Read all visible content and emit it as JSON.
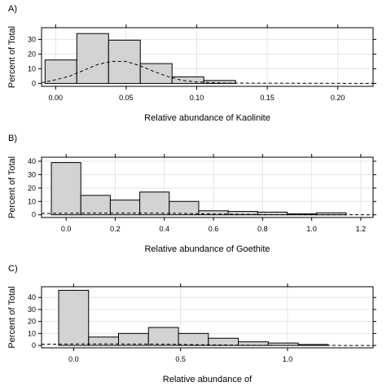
{
  "chart_data": [
    {
      "type": "bar",
      "panel": "A)",
      "xlabel": "Relative abundance of Kaolinite",
      "ylabel": "Percent of Total",
      "xlim": [
        -0.01,
        0.225
      ],
      "ylim": [
        -2,
        38
      ],
      "x_ticks": [
        0.0,
        0.05,
        0.1,
        0.15,
        0.2
      ],
      "x_tick_labels": [
        "0.00",
        "0.05",
        "0.10",
        "0.15",
        "0.20"
      ],
      "y_ticks": [
        0,
        10,
        20,
        30
      ],
      "y_tick_labels": [
        "0",
        "10",
        "20",
        "30"
      ],
      "bins": [
        {
          "x0": -0.0075,
          "x1": 0.015,
          "value": 16
        },
        {
          "x0": 0.015,
          "x1": 0.0375,
          "value": 34
        },
        {
          "x0": 0.0375,
          "x1": 0.06,
          "value": 29.5
        },
        {
          "x0": 0.06,
          "x1": 0.0825,
          "value": 13.5
        },
        {
          "x0": 0.0825,
          "x1": 0.105,
          "value": 4.5
        },
        {
          "x0": 0.105,
          "x1": 0.1275,
          "value": 2
        }
      ],
      "density_points": [
        [
          -0.01,
          0.5
        ],
        [
          0.0,
          2.5
        ],
        [
          0.01,
          5
        ],
        [
          0.02,
          9
        ],
        [
          0.03,
          13
        ],
        [
          0.04,
          15
        ],
        [
          0.05,
          15
        ],
        [
          0.06,
          12
        ],
        [
          0.07,
          8
        ],
        [
          0.08,
          4.5
        ],
        [
          0.09,
          2
        ],
        [
          0.1,
          1
        ],
        [
          0.12,
          0.2
        ],
        [
          0.225,
          0
        ]
      ],
      "grid": true
    },
    {
      "type": "bar",
      "panel": "B)",
      "xlabel": "Relative abundance of Goethite",
      "ylabel": "Percent of Total",
      "xlim": [
        -0.1,
        1.25
      ],
      "ylim": [
        -2,
        43
      ],
      "x_ticks": [
        0.0,
        0.2,
        0.4,
        0.6,
        0.8,
        1.0,
        1.2
      ],
      "x_tick_labels": [
        "0.0",
        "0.2",
        "0.4",
        "0.6",
        "0.8",
        "1.0",
        "1.2"
      ],
      "y_ticks": [
        0,
        10,
        20,
        30,
        40
      ],
      "y_tick_labels": [
        "0",
        "10",
        "20",
        "30",
        "40"
      ],
      "bins": [
        {
          "x0": -0.06,
          "x1": 0.06,
          "value": 39
        },
        {
          "x0": 0.06,
          "x1": 0.18,
          "value": 14.5
        },
        {
          "x0": 0.18,
          "x1": 0.3,
          "value": 11
        },
        {
          "x0": 0.3,
          "x1": 0.42,
          "value": 17
        },
        {
          "x0": 0.42,
          "x1": 0.54,
          "value": 10
        },
        {
          "x0": 0.54,
          "x1": 0.66,
          "value": 3
        },
        {
          "x0": 0.66,
          "x1": 0.78,
          "value": 2.5
        },
        {
          "x0": 0.78,
          "x1": 0.9,
          "value": 2
        },
        {
          "x0": 0.9,
          "x1": 1.02,
          "value": 0.7
        },
        {
          "x0": 1.02,
          "x1": 1.14,
          "value": 1.5
        }
      ],
      "density_points": [
        [
          -0.1,
          1
        ],
        [
          0.0,
          1.2
        ],
        [
          0.2,
          1.3
        ],
        [
          0.4,
          1.2
        ],
        [
          0.6,
          0.6
        ],
        [
          0.8,
          0.2
        ],
        [
          1.0,
          0.05
        ],
        [
          1.25,
          0
        ]
      ],
      "grid": true
    },
    {
      "type": "bar",
      "panel": "C)",
      "xlabel": "Relative abundance of",
      "ylabel": "Percent of Total",
      "xlim": [
        -0.15,
        1.4
      ],
      "ylim": [
        -2,
        49
      ],
      "x_ticks": [
        0.0,
        0.5,
        1.0
      ],
      "x_tick_labels": [
        "0.0",
        "0.5",
        "1.0"
      ],
      "y_ticks": [
        0,
        10,
        20,
        30,
        40
      ],
      "y_tick_labels": [
        "0",
        "10",
        "20",
        "30",
        "40"
      ],
      "bins": [
        {
          "x0": -0.07,
          "x1": 0.07,
          "value": 46
        },
        {
          "x0": 0.07,
          "x1": 0.21,
          "value": 7
        },
        {
          "x0": 0.21,
          "x1": 0.35,
          "value": 10
        },
        {
          "x0": 0.35,
          "x1": 0.49,
          "value": 15
        },
        {
          "x0": 0.49,
          "x1": 0.63,
          "value": 10
        },
        {
          "x0": 0.63,
          "x1": 0.77,
          "value": 6
        },
        {
          "x0": 0.77,
          "x1": 0.91,
          "value": 3
        },
        {
          "x0": 0.91,
          "x1": 1.05,
          "value": 2
        },
        {
          "x0": 1.05,
          "x1": 1.19,
          "value": 0.8
        }
      ],
      "density_points": [
        [
          -0.15,
          1
        ],
        [
          0.0,
          1.2
        ],
        [
          0.2,
          1.2
        ],
        [
          0.4,
          1.1
        ],
        [
          0.6,
          0.6
        ],
        [
          0.8,
          0.2
        ],
        [
          1.0,
          0.05
        ],
        [
          1.4,
          0
        ]
      ],
      "grid": true
    }
  ]
}
